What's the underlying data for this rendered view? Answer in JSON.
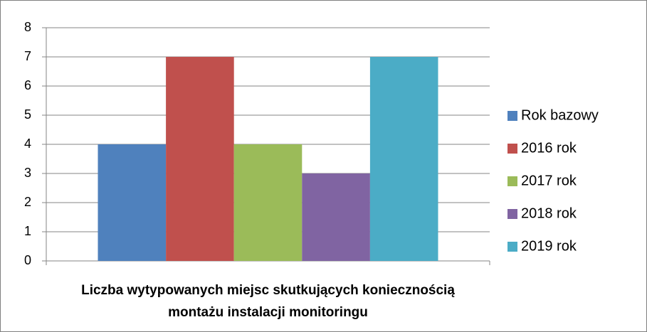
{
  "chart_data": {
    "type": "bar",
    "categories": [
      "Liczba wytypowanych miejsc skutkujących koniecznością montażu instalacji monitoringu"
    ],
    "series": [
      {
        "name": "Rok bazowy",
        "color": "#4f81bd",
        "values": [
          4
        ]
      },
      {
        "name": "2016 rok",
        "color": "#c0504d",
        "values": [
          7
        ]
      },
      {
        "name": "2017 rok",
        "color": "#9bbb59",
        "values": [
          4
        ]
      },
      {
        "name": "2018 rok",
        "color": "#8064a2",
        "values": [
          3
        ]
      },
      {
        "name": "2019 rok",
        "color": "#4bacc6",
        "values": [
          7
        ]
      }
    ],
    "ylim": [
      0,
      8
    ],
    "yticks": [
      0,
      1,
      2,
      3,
      4,
      5,
      6,
      7,
      8
    ],
    "grid": true,
    "legend": "right"
  }
}
